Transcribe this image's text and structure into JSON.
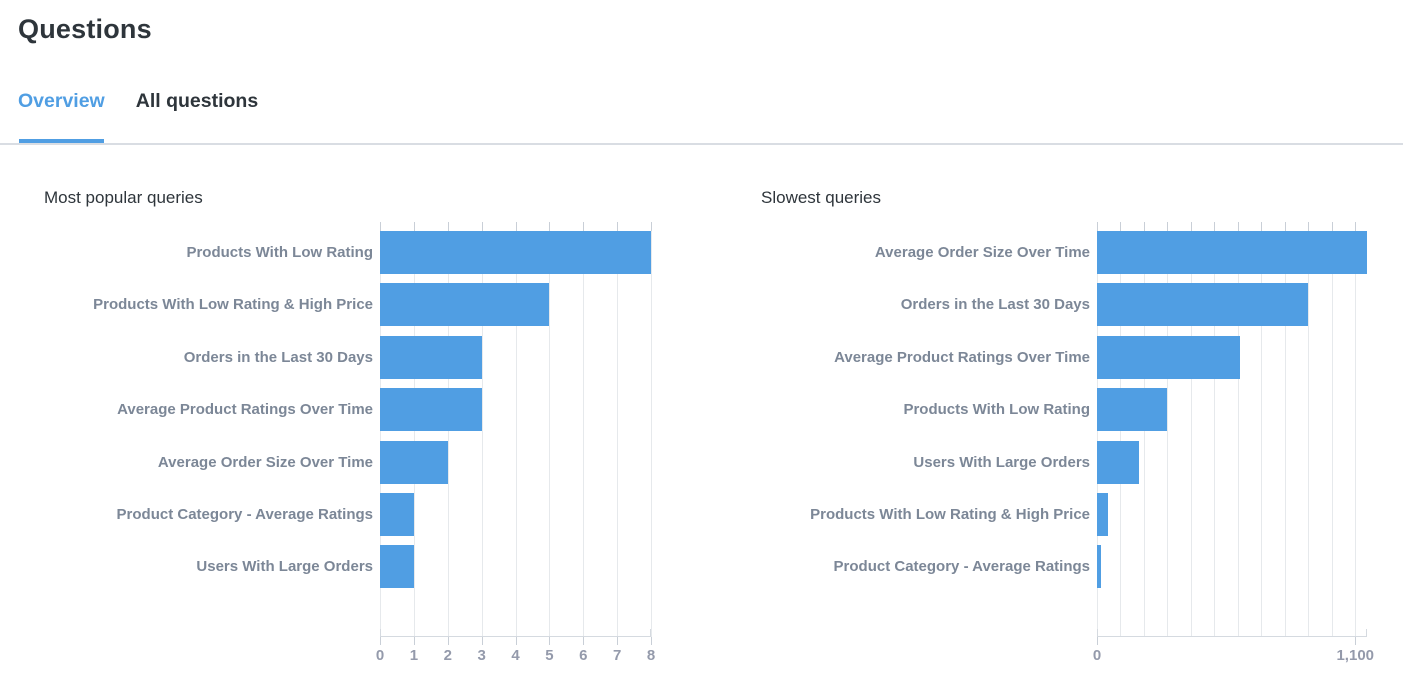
{
  "page": {
    "title": "Questions"
  },
  "tabs": [
    {
      "label": "Overview",
      "active": true
    },
    {
      "label": "All questions",
      "active": false
    }
  ],
  "colors": {
    "brand": "#509EE3",
    "text_dark": "#2E353B",
    "category_label": "#7C8797",
    "axis_tick_text": "#949AAB",
    "gridline": "#E6E9EC",
    "axis_line": "#D5DAE0",
    "tab_divider": "#D9DDE3"
  },
  "chart_data": [
    {
      "type": "bar",
      "orientation": "horizontal",
      "title": "Most popular queries",
      "categories": [
        "Products With Low Rating",
        "Products With Low Rating & High Price",
        "Orders in the Last 30 Days",
        "Average Product Ratings Over Time",
        "Average Order Size Over Time",
        "Product Category - Average Ratings",
        "Users With Large Orders"
      ],
      "values": [
        8,
        5,
        3,
        3,
        2,
        1,
        1
      ],
      "xlabel": "",
      "ylabel": "",
      "xlim": [
        0,
        8
      ],
      "grid": true,
      "gridlines": [
        0,
        1,
        2,
        3,
        4,
        5,
        6,
        7,
        8
      ],
      "axis_ticks": [
        {
          "value": 0,
          "label": "0"
        },
        {
          "value": 1,
          "label": "1"
        },
        {
          "value": 2,
          "label": "2"
        },
        {
          "value": 3,
          "label": "3"
        },
        {
          "value": 4,
          "label": "4"
        },
        {
          "value": 5,
          "label": "5"
        },
        {
          "value": 6,
          "label": "6"
        },
        {
          "value": 7,
          "label": "7"
        },
        {
          "value": 8,
          "label": "8"
        }
      ],
      "bar_color": "#509EE3",
      "legend": "none"
    },
    {
      "type": "bar",
      "orientation": "horizontal",
      "title": "Slowest queries",
      "categories": [
        "Average Order Size Over Time",
        "Orders in the Last 30 Days",
        "Average Product Ratings Over Time",
        "Products With Low Rating",
        "Users With Large Orders",
        "Products With Low Rating & High Price",
        "Product Category - Average Ratings"
      ],
      "values": [
        1150,
        900,
        610,
        300,
        180,
        45,
        15
      ],
      "xlabel": "",
      "ylabel": "",
      "xlim": [
        0,
        1150
      ],
      "grid": true,
      "gridlines": [
        0,
        100,
        200,
        300,
        400,
        500,
        600,
        700,
        800,
        900,
        1000,
        1100
      ],
      "axis_ticks": [
        {
          "value": 0,
          "label": "0"
        },
        {
          "value": 1100,
          "label": "1,100"
        }
      ],
      "bar_color": "#509EE3",
      "legend": "none"
    }
  ]
}
